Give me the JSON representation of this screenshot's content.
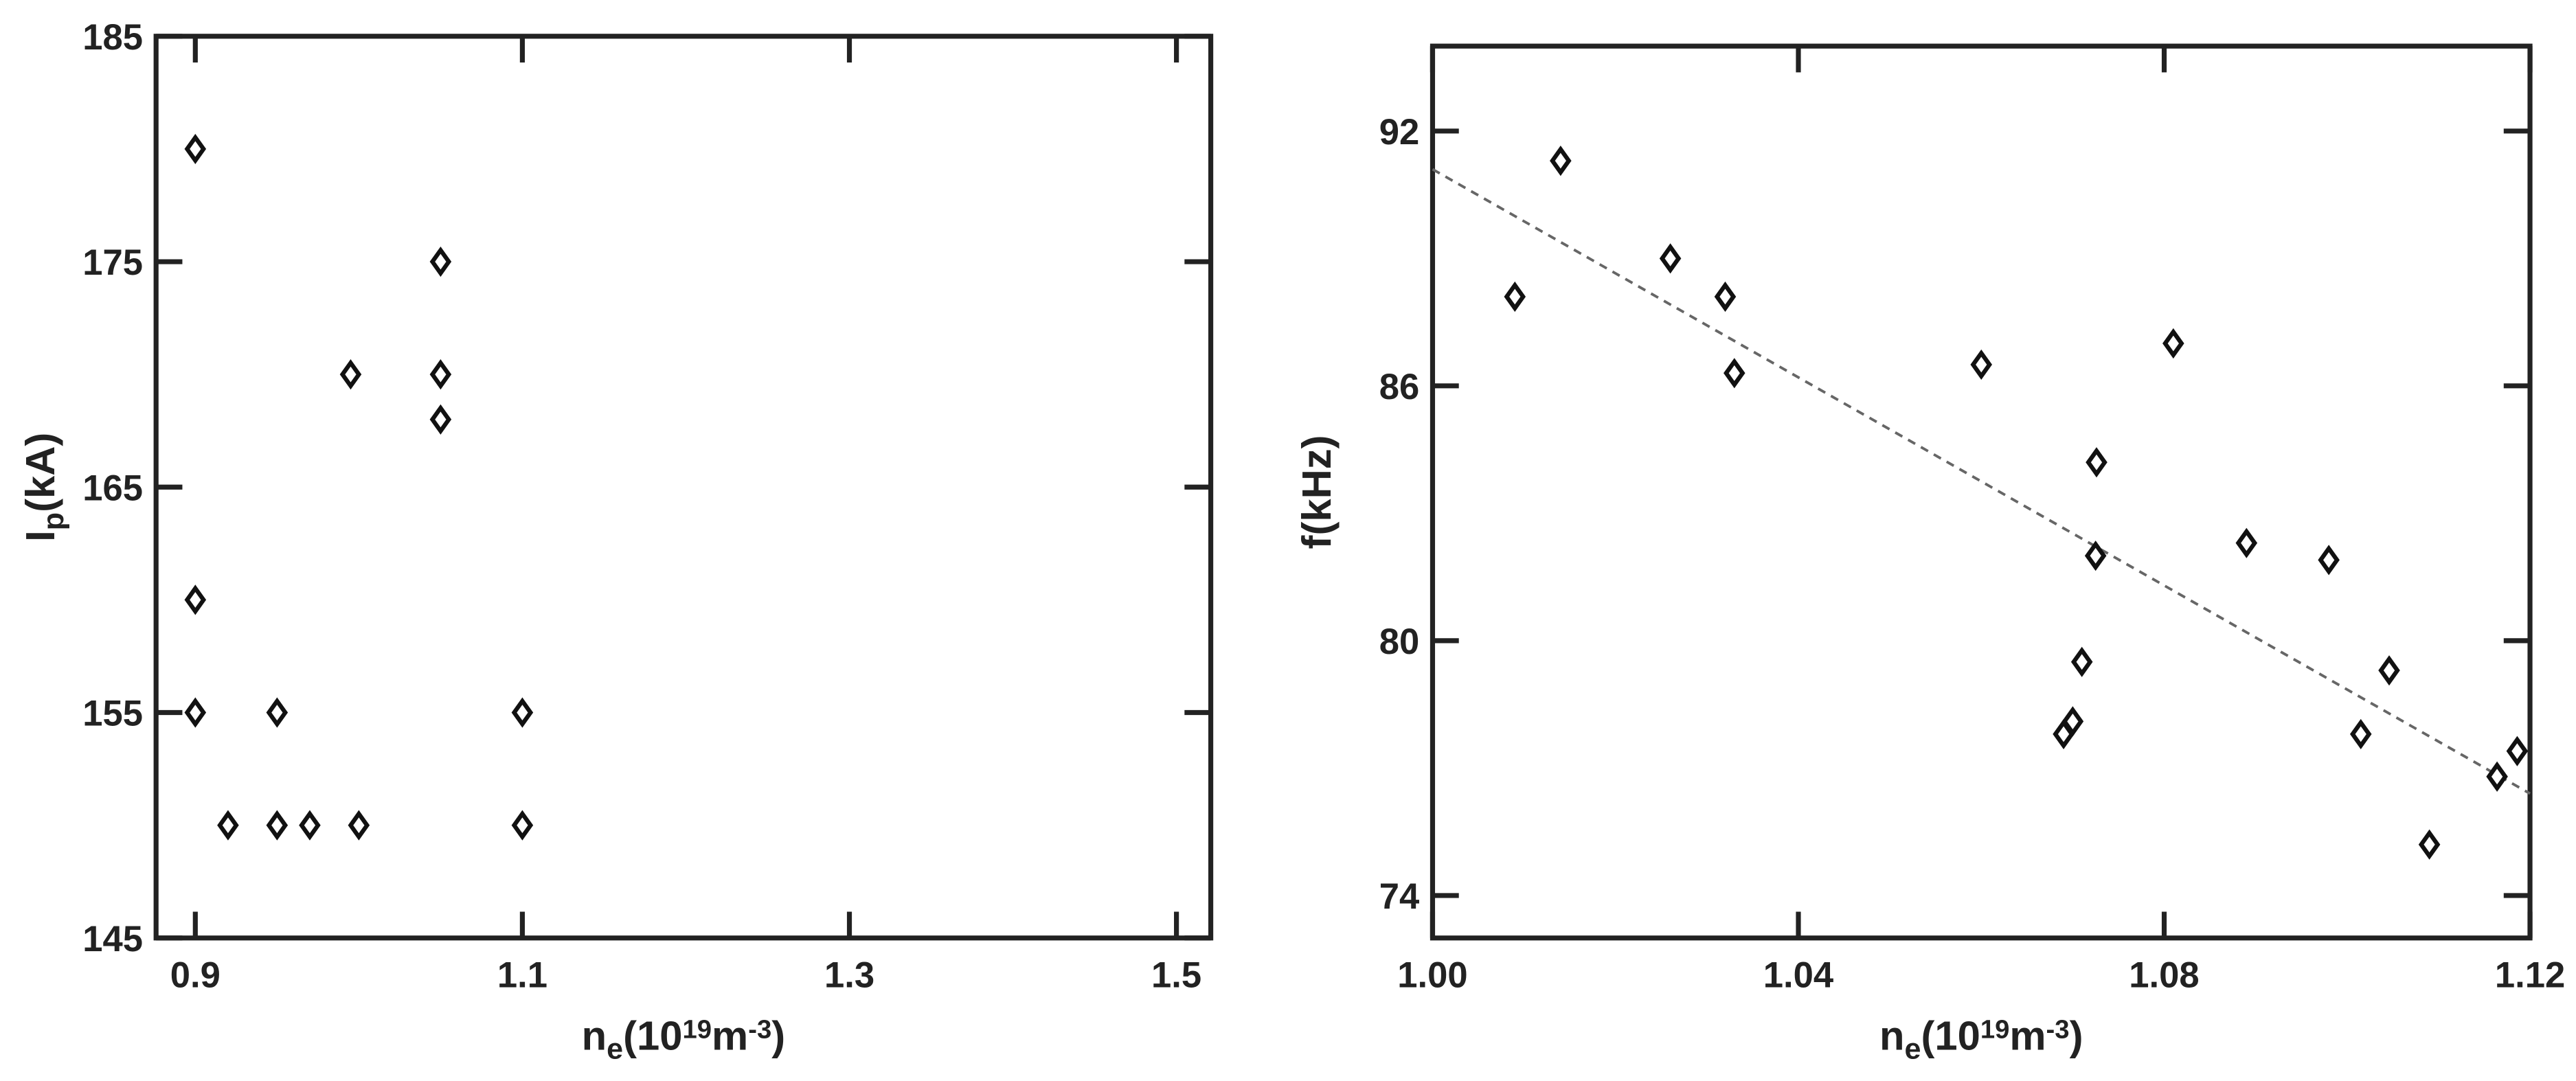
{
  "chart_data": [
    {
      "type": "scatter",
      "x": [
        0.9,
        0.9,
        0.9,
        0.92,
        0.95,
        0.95,
        0.97,
        0.995,
        1.0,
        1.05,
        1.05,
        1.05,
        1.1,
        1.1
      ],
      "series": [
        {
          "color": "#111111",
          "values": [
            180,
            160,
            155,
            150,
            155,
            150,
            150,
            170,
            150,
            175,
            170,
            168,
            155,
            150
          ]
        }
      ],
      "xlim": [
        0.876,
        1.521
      ],
      "xticks": [
        0.9,
        1.1,
        1.3,
        1.5
      ],
      "ylim": [
        145,
        185
      ],
      "yticks": [
        145,
        155,
        165,
        175,
        185
      ],
      "xlabel": [
        {
          "text": "n"
        },
        {
          "text": "e",
          "script": "sub"
        },
        {
          "text": "(10"
        },
        {
          "text": "19",
          "script": "super"
        },
        {
          "text": "m"
        },
        {
          "text": "-3",
          "script": "super"
        },
        {
          "text": ")"
        }
      ],
      "ylabel": [
        {
          "text": "I"
        },
        {
          "text": "p",
          "script": "sub"
        },
        {
          "text": "(kA)"
        }
      ]
    },
    {
      "type": "scatter",
      "x": [
        1.009,
        1.014,
        1.026,
        1.032,
        1.033,
        1.06,
        1.069,
        1.07,
        1.071,
        1.0725,
        1.0726,
        1.081,
        1.089,
        1.098,
        1.1015,
        1.1046,
        1.109,
        1.1164,
        1.1186
      ],
      "series": [
        {
          "color": "#111111",
          "values": [
            88.1,
            91.3,
            89.0,
            88.1,
            86.3,
            86.5,
            77.8,
            78.1,
            79.5,
            82.0,
            84.2,
            87.0,
            82.3,
            81.9,
            77.8,
            79.3,
            75.2,
            76.8,
            77.4
          ]
        }
      ],
      "fit": {
        "color": "#666666",
        "x": [
          1.0,
          1.12
        ],
        "values": [
          91.1,
          76.4
        ]
      },
      "xlim": [
        1.0,
        1.12
      ],
      "xticks": [
        {
          "value": 1.0,
          "label": "1.00"
        },
        1.04,
        1.08,
        1.12
      ],
      "ylim": [
        73,
        94
      ],
      "yticks": [
        74,
        80,
        86,
        92
      ],
      "xlabel": [
        {
          "text": "n"
        },
        {
          "text": "e",
          "script": "sub"
        },
        {
          "text": "(10"
        },
        {
          "text": "19",
          "script": "super"
        },
        {
          "text": "m"
        },
        {
          "text": "-3",
          "script": "super"
        },
        {
          "text": ")"
        }
      ],
      "ylabel": [
        {
          "text": "f(kHz)"
        }
      ]
    }
  ]
}
